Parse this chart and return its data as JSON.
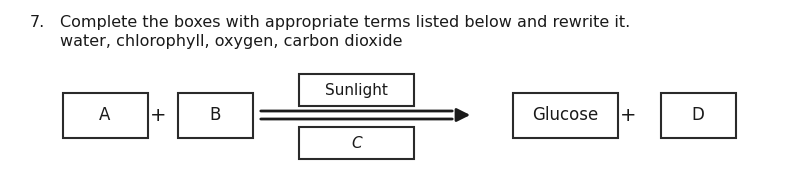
{
  "title_line1": "7.   Complete the boxes with appropriate terms listed below and rewrite it.",
  "title_line2": "water, chlorophyll, oxygen, carbon dioxide",
  "box_A_label": "A",
  "box_B_label": "B",
  "box_sunlight_label": "Sunlight",
  "box_C_label": "C",
  "box_glucose_label": "Glucose",
  "box_D_label": "D",
  "plus1": "+",
  "plus2": "+",
  "background_color": "#ffffff",
  "text_color": "#1a1a1a",
  "box_edge_color": "#2a2a2a",
  "fig_width": 7.87,
  "fig_height": 1.87,
  "title_fontsize": 11.5,
  "label_fontsize": 11.5
}
